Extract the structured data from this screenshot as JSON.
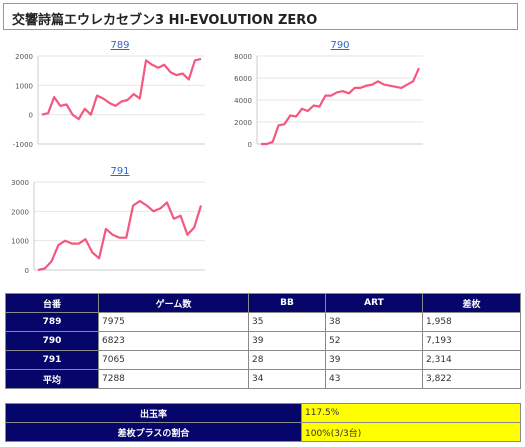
{
  "page_title": "交響詩篇エウレカセブン3 HI-EVOLUTION ZERO",
  "charts": [
    {
      "id": "789",
      "link_label": "789",
      "y_ticks": [
        "2000",
        "1000",
        "0",
        "-1000"
      ],
      "y_tick_values": [
        2000,
        1000,
        0,
        -1000
      ],
      "ylim": [
        -1000,
        2000
      ],
      "line_color": "#f5577f",
      "values": [
        0,
        50,
        600,
        300,
        350,
        0,
        -150,
        200,
        0,
        650,
        550,
        400,
        300,
        450,
        500,
        700,
        550,
        1850,
        1700,
        1600,
        1700,
        1450,
        1350,
        1400,
        1200,
        1850,
        1900
      ]
    },
    {
      "id": "790",
      "link_label": "790",
      "y_ticks": [
        "8000",
        "6000",
        "4000",
        "2000",
        "0"
      ],
      "y_tick_values": [
        8000,
        6000,
        4000,
        2000,
        0
      ],
      "ylim": [
        0,
        8000
      ],
      "line_color": "#f5577f",
      "values": [
        0,
        0,
        200,
        1700,
        1800,
        2600,
        2500,
        3200,
        3000,
        3500,
        3400,
        4400,
        4400,
        4700,
        4800,
        4600,
        5100,
        5100,
        5300,
        5400,
        5700,
        5400,
        5300,
        5200,
        5100,
        5400,
        5700,
        6900
      ]
    },
    {
      "id": "791",
      "link_label": "791",
      "y_ticks": [
        "3000",
        "2000",
        "1000",
        "0"
      ],
      "y_tick_values": [
        3000,
        2000,
        1000,
        0
      ],
      "ylim": [
        0,
        3000
      ],
      "line_color": "#f5577f",
      "values": [
        0,
        50,
        300,
        850,
        1000,
        900,
        900,
        1050,
        600,
        400,
        1400,
        1200,
        1100,
        1100,
        2200,
        2350,
        2200,
        2000,
        2100,
        2300,
        1750,
        1850,
        1200,
        1450,
        2200
      ]
    }
  ],
  "table": {
    "headers": [
      "台番",
      "ゲーム数",
      "BB",
      "ART",
      "差枚"
    ],
    "rows": [
      {
        "label": "789",
        "cells": [
          "7975",
          "35",
          "38",
          "1,958"
        ]
      },
      {
        "label": "790",
        "cells": [
          "6823",
          "39",
          "52",
          "7,193"
        ]
      },
      {
        "label": "791",
        "cells": [
          "7065",
          "28",
          "39",
          "2,314"
        ]
      },
      {
        "label": "平均",
        "cells": [
          "7288",
          "34",
          "43",
          "3,822"
        ]
      }
    ]
  },
  "summary": {
    "rows": [
      {
        "label": "出玉率",
        "value": "117.5%"
      },
      {
        "label": "差枚プラスの割合",
        "value": "100%(3/3台)"
      }
    ],
    "highlight_color": "#ffff00"
  }
}
